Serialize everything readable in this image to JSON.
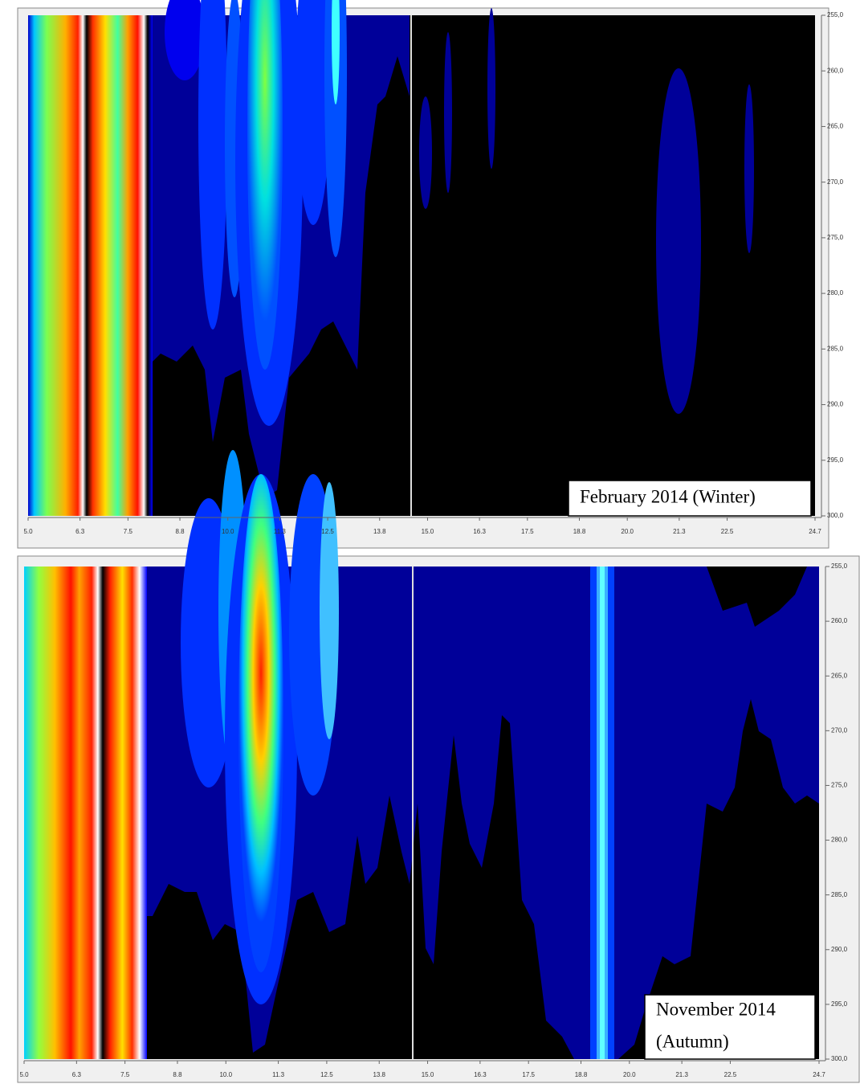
{
  "chart_data": [
    {
      "type": "contour",
      "annotation": [
        "February 2014 (Winter)"
      ],
      "xlim": [
        5,
        24.7
      ],
      "xticks": [
        {
          "value": 5,
          "label": "5.0"
        },
        {
          "value": 6.3,
          "label": "6.3"
        },
        {
          "value": 7.5,
          "label": "7.5"
        },
        {
          "value": 8.8,
          "label": "8.8"
        },
        {
          "value": 10,
          "label": "10.0"
        },
        {
          "value": 11.3,
          "label": "11.3"
        },
        {
          "value": 12.5,
          "label": "12.5"
        },
        {
          "value": 13.8,
          "label": "13.8"
        },
        {
          "value": 15,
          "label": "15.0"
        },
        {
          "value": 16.3,
          "label": "16.3"
        },
        {
          "value": 17.5,
          "label": "17.5"
        },
        {
          "value": 18.8,
          "label": "18.8"
        },
        {
          "value": 20,
          "label": "20.0"
        },
        {
          "value": 21.3,
          "label": "21.3"
        },
        {
          "value": 22.5,
          "label": "22.5"
        },
        {
          "value": 24.7,
          "label": "24.7"
        }
      ],
      "ylim": [
        255,
        300
      ],
      "y_inverted": true,
      "yticks": [
        {
          "value": 255,
          "label": "255,0"
        },
        {
          "value": 260,
          "label": "260,0"
        },
        {
          "value": 265,
          "label": "265,0"
        },
        {
          "value": 270,
          "label": "270,0"
        },
        {
          "value": 275,
          "label": "275,0"
        },
        {
          "value": 280,
          "label": "280,0"
        },
        {
          "value": 285,
          "label": "285,0"
        },
        {
          "value": 290,
          "label": "290,0"
        },
        {
          "value": 295,
          "label": "295,0"
        },
        {
          "value": 300,
          "label": "300,0"
        }
      ]
    },
    {
      "type": "contour",
      "annotation": [
        "November 2014",
        "(Autumn)"
      ],
      "xlim": [
        5,
        24.7
      ],
      "xticks": [
        {
          "value": 5,
          "label": "5.0"
        },
        {
          "value": 6.3,
          "label": "6.3"
        },
        {
          "value": 7.5,
          "label": "7.5"
        },
        {
          "value": 8.8,
          "label": "8.8"
        },
        {
          "value": 10,
          "label": "10.0"
        },
        {
          "value": 11.3,
          "label": "11.3"
        },
        {
          "value": 12.5,
          "label": "12.5"
        },
        {
          "value": 13.8,
          "label": "13.8"
        },
        {
          "value": 15,
          "label": "15.0"
        },
        {
          "value": 16.3,
          "label": "16.3"
        },
        {
          "value": 17.5,
          "label": "17.5"
        },
        {
          "value": 18.8,
          "label": "18.8"
        },
        {
          "value": 20,
          "label": "20.0"
        },
        {
          "value": 21.3,
          "label": "21.3"
        },
        {
          "value": 22.5,
          "label": "22.5"
        },
        {
          "value": 24.7,
          "label": "24.7"
        }
      ],
      "ylim": [
        255,
        300
      ],
      "y_inverted": true,
      "yticks": [
        {
          "value": 255,
          "label": "255,0"
        },
        {
          "value": 260,
          "label": "260,0"
        },
        {
          "value": 265,
          "label": "265,0"
        },
        {
          "value": 270,
          "label": "270,0"
        },
        {
          "value": 275,
          "label": "275,0"
        },
        {
          "value": 280,
          "label": "280,0"
        },
        {
          "value": 285,
          "label": "285,0"
        },
        {
          "value": 290,
          "label": "290,0"
        },
        {
          "value": 295,
          "label": "295,0"
        },
        {
          "value": 300,
          "label": "300,0"
        }
      ]
    }
  ]
}
